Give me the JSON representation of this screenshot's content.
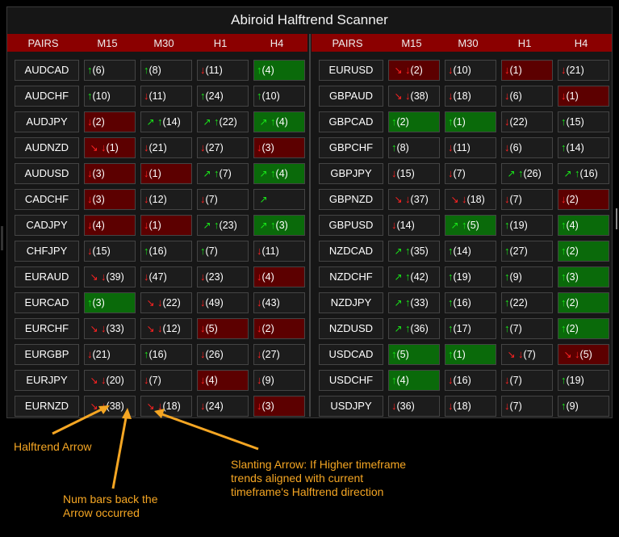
{
  "title": "Abiroid Halftrend Scanner",
  "headers": [
    "PAIRS",
    "M15",
    "M30",
    "H1",
    "H4"
  ],
  "colors": {
    "accent_header": "#8b0000",
    "up": "#19e619",
    "down": "#ff2222",
    "cell_red": "#5c0000",
    "cell_green": "#0a6a0a",
    "annotation": "#f5a623"
  },
  "left": [
    {
      "pair": "AUDCAD",
      "cells": [
        {
          "d": "up",
          "n": "(6)"
        },
        {
          "d": "up",
          "n": "(8)"
        },
        {
          "d": "dn",
          "n": "(11)"
        },
        {
          "d": "up",
          "n": "(4)",
          "bg": "green"
        }
      ]
    },
    {
      "pair": "AUDCHF",
      "cells": [
        {
          "d": "up",
          "n": "(10)"
        },
        {
          "d": "dn",
          "n": "(11)"
        },
        {
          "d": "up",
          "n": "(24)"
        },
        {
          "d": "up",
          "n": "(10)"
        }
      ]
    },
    {
      "pair": "AUDJPY",
      "cells": [
        {
          "d": "dn",
          "n": "(2)",
          "bg": "red"
        },
        {
          "d": "up",
          "s": true,
          "n": "(14)"
        },
        {
          "d": "up",
          "s": true,
          "n": "(22)"
        },
        {
          "d": "up",
          "s": true,
          "n": "(4)",
          "bg": "green"
        }
      ]
    },
    {
      "pair": "AUDNZD",
      "cells": [
        {
          "d": "dn",
          "s": true,
          "n": "(1)",
          "bg": "red"
        },
        {
          "d": "dn",
          "n": "(21)"
        },
        {
          "d": "dn",
          "n": "(27)"
        },
        {
          "d": "dn",
          "n": "(3)",
          "bg": "red"
        }
      ]
    },
    {
      "pair": "AUDUSD",
      "cells": [
        {
          "d": "dn",
          "n": "(3)",
          "bg": "red"
        },
        {
          "d": "dn",
          "n": "(1)",
          "bg": "red"
        },
        {
          "d": "up",
          "s": true,
          "n": "(7)"
        },
        {
          "d": "up",
          "s": true,
          "n": "(4)",
          "bg": "green"
        }
      ]
    },
    {
      "pair": "CADCHF",
      "cells": [
        {
          "d": "dn",
          "n": "(3)",
          "bg": "red"
        },
        {
          "d": "dn",
          "n": "(12)"
        },
        {
          "d": "dn",
          "n": "(7)"
        },
        {
          "d": "sl",
          "n": ""
        }
      ]
    },
    {
      "pair": "CADJPY",
      "cells": [
        {
          "d": "dn",
          "n": "(4)",
          "bg": "red"
        },
        {
          "d": "dn",
          "n": "(1)",
          "bg": "red"
        },
        {
          "d": "up",
          "s": true,
          "n": "(23)"
        },
        {
          "d": "up",
          "s": true,
          "n": "(3)",
          "bg": "green"
        }
      ]
    },
    {
      "pair": "CHFJPY",
      "cells": [
        {
          "d": "dn",
          "n": "(15)"
        },
        {
          "d": "up",
          "n": "(16)"
        },
        {
          "d": "up",
          "n": "(7)"
        },
        {
          "d": "dn",
          "n": "(11)"
        }
      ]
    },
    {
      "pair": "EURAUD",
      "cells": [
        {
          "d": "dn",
          "s": true,
          "n": "(39)"
        },
        {
          "d": "dn",
          "n": "(47)"
        },
        {
          "d": "dn",
          "n": "(23)"
        },
        {
          "d": "dn",
          "n": "(4)",
          "bg": "red"
        }
      ]
    },
    {
      "pair": "EURCAD",
      "cells": [
        {
          "d": "up",
          "n": "(3)",
          "bg": "green"
        },
        {
          "d": "dn",
          "s": true,
          "n": "(22)"
        },
        {
          "d": "dn",
          "n": "(49)"
        },
        {
          "d": "dn",
          "n": "(43)"
        }
      ]
    },
    {
      "pair": "EURCHF",
      "cells": [
        {
          "d": "dn",
          "s": true,
          "n": "(33)"
        },
        {
          "d": "dn",
          "s": true,
          "n": "(12)"
        },
        {
          "d": "dn",
          "n": "(5)",
          "bg": "red"
        },
        {
          "d": "dn",
          "n": "(2)",
          "bg": "red"
        }
      ]
    },
    {
      "pair": "EURGBP",
      "cells": [
        {
          "d": "dn",
          "n": "(21)"
        },
        {
          "d": "up",
          "n": "(16)"
        },
        {
          "d": "dn",
          "n": "(26)"
        },
        {
          "d": "dn",
          "n": "(27)"
        }
      ]
    },
    {
      "pair": "EURJPY",
      "cells": [
        {
          "d": "dn",
          "s": true,
          "n": "(20)"
        },
        {
          "d": "dn",
          "n": "(7)"
        },
        {
          "d": "dn",
          "n": "(4)",
          "bg": "red"
        },
        {
          "d": "dn",
          "n": "(9)"
        }
      ]
    },
    {
      "pair": "EURNZD",
      "cells": [
        {
          "d": "dn",
          "s": true,
          "n": "(38)"
        },
        {
          "d": "dn",
          "s": true,
          "n": "(18)"
        },
        {
          "d": "dn",
          "n": "(24)"
        },
        {
          "d": "dn",
          "n": "(3)",
          "bg": "red"
        }
      ]
    }
  ],
  "right": [
    {
      "pair": "EURUSD",
      "cells": [
        {
          "d": "dn",
          "s": true,
          "n": "(2)",
          "bg": "red"
        },
        {
          "d": "dn",
          "n": "(10)"
        },
        {
          "d": "dn",
          "n": "(1)",
          "bg": "red"
        },
        {
          "d": "dn",
          "n": "(21)"
        }
      ]
    },
    {
      "pair": "GBPAUD",
      "cells": [
        {
          "d": "dn",
          "s": true,
          "n": "(38)"
        },
        {
          "d": "dn",
          "n": "(18)"
        },
        {
          "d": "dn",
          "n": "(6)"
        },
        {
          "d": "dn",
          "n": "(1)",
          "bg": "red"
        }
      ]
    },
    {
      "pair": "GBPCAD",
      "cells": [
        {
          "d": "up",
          "n": "(2)",
          "bg": "green"
        },
        {
          "d": "up",
          "n": "(1)",
          "bg": "green"
        },
        {
          "d": "dn",
          "n": "(22)"
        },
        {
          "d": "up",
          "n": "(15)"
        }
      ]
    },
    {
      "pair": "GBPCHF",
      "cells": [
        {
          "d": "up",
          "n": "(8)"
        },
        {
          "d": "dn",
          "n": "(11)"
        },
        {
          "d": "dn",
          "n": "(6)"
        },
        {
          "d": "up",
          "n": "(14)"
        }
      ]
    },
    {
      "pair": "GBPJPY",
      "cells": [
        {
          "d": "dn",
          "n": "(15)"
        },
        {
          "d": "dn",
          "n": "(7)"
        },
        {
          "d": "up",
          "s": true,
          "n": "(26)"
        },
        {
          "d": "up",
          "s": true,
          "n": "(16)"
        }
      ]
    },
    {
      "pair": "GBPNZD",
      "cells": [
        {
          "d": "dn",
          "s": true,
          "n": "(37)"
        },
        {
          "d": "dn",
          "s": true,
          "n": "(18)"
        },
        {
          "d": "dn",
          "n": "(7)"
        },
        {
          "d": "dn",
          "n": "(2)",
          "bg": "red"
        }
      ]
    },
    {
      "pair": "GBPUSD",
      "cells": [
        {
          "d": "dn",
          "n": "(14)"
        },
        {
          "d": "up",
          "s": true,
          "n": "(5)",
          "bg": "green"
        },
        {
          "d": "up",
          "n": "(19)"
        },
        {
          "d": "up",
          "n": "(4)",
          "bg": "green"
        }
      ]
    },
    {
      "pair": "NZDCAD",
      "cells": [
        {
          "d": "up",
          "s": true,
          "n": "(35)"
        },
        {
          "d": "up",
          "n": "(14)"
        },
        {
          "d": "up",
          "n": "(27)"
        },
        {
          "d": "up",
          "n": "(2)",
          "bg": "green"
        }
      ]
    },
    {
      "pair": "NZDCHF",
      "cells": [
        {
          "d": "up",
          "s": true,
          "n": "(42)"
        },
        {
          "d": "up",
          "n": "(19)"
        },
        {
          "d": "up",
          "n": "(9)"
        },
        {
          "d": "up",
          "n": "(3)",
          "bg": "green"
        }
      ]
    },
    {
      "pair": "NZDJPY",
      "cells": [
        {
          "d": "up",
          "s": true,
          "n": "(33)"
        },
        {
          "d": "up",
          "n": "(16)"
        },
        {
          "d": "up",
          "n": "(22)"
        },
        {
          "d": "up",
          "n": "(2)",
          "bg": "green"
        }
      ]
    },
    {
      "pair": "NZDUSD",
      "cells": [
        {
          "d": "up",
          "s": true,
          "n": "(36)"
        },
        {
          "d": "up",
          "n": "(17)"
        },
        {
          "d": "up",
          "n": "(7)"
        },
        {
          "d": "up",
          "n": "(2)",
          "bg": "green"
        }
      ]
    },
    {
      "pair": "USDCAD",
      "cells": [
        {
          "d": "up",
          "n": "(5)",
          "bg": "green"
        },
        {
          "d": "up",
          "n": "(1)",
          "bg": "green"
        },
        {
          "d": "dn",
          "s": true,
          "n": "(7)"
        },
        {
          "d": "dn",
          "s": true,
          "n": "(5)",
          "bg": "red"
        }
      ]
    },
    {
      "pair": "USDCHF",
      "cells": [
        {
          "d": "up",
          "n": "(4)",
          "bg": "green"
        },
        {
          "d": "dn",
          "n": "(16)"
        },
        {
          "d": "dn",
          "n": "(7)"
        },
        {
          "d": "up",
          "n": "(19)"
        }
      ]
    },
    {
      "pair": "USDJPY",
      "cells": [
        {
          "d": "dn",
          "n": "(36)"
        },
        {
          "d": "dn",
          "n": "(18)"
        },
        {
          "d": "dn",
          "n": "(7)"
        },
        {
          "d": "up",
          "n": "(9)"
        }
      ]
    }
  ],
  "annotations": {
    "halftrend_arrow": "Halftrend Arrow",
    "num_bars_line1": "Num bars back the",
    "num_bars_line2": "Arrow occurred",
    "slanting_line1": "Slanting Arrow: If Higher timeframe",
    "slanting_line2": "trends aligned with current",
    "slanting_line3": "timeframe's Halftrend direction"
  }
}
